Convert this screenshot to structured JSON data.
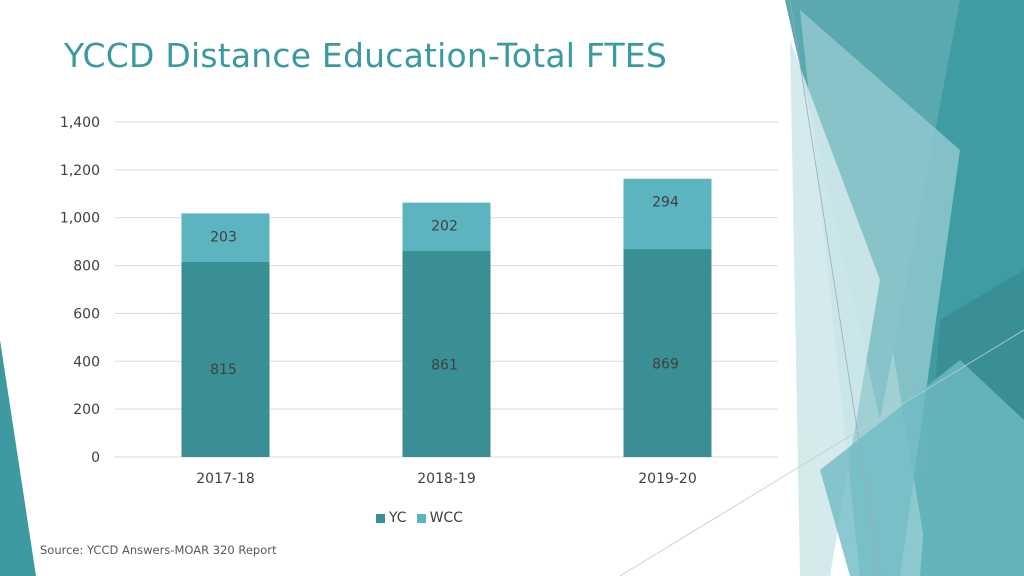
{
  "slide": {
    "title": "YCCD Distance Education-Total FTES",
    "source": "Source: YCCD Answers-MOAR 320 Report"
  },
  "colors": {
    "yc": "#3a8f94",
    "wcc": "#5bb4c0",
    "title": "#3a9aa0",
    "grid": "#d9d9d9",
    "label": "#404040"
  },
  "chart_data": {
    "type": "bar",
    "stacked": true,
    "categories": [
      "2017-18",
      "2018-19",
      "2019-20"
    ],
    "series": [
      {
        "name": "YC",
        "values": [
          815,
          861,
          869
        ]
      },
      {
        "name": "WCC",
        "values": [
          203,
          202,
          294
        ]
      }
    ],
    "ylim": [
      0,
      1400
    ],
    "yticks": [
      "0",
      "200",
      "400",
      "600",
      "800",
      "1,000",
      "1,200",
      "1,400"
    ],
    "grid": true,
    "legend_position": "bottom"
  }
}
